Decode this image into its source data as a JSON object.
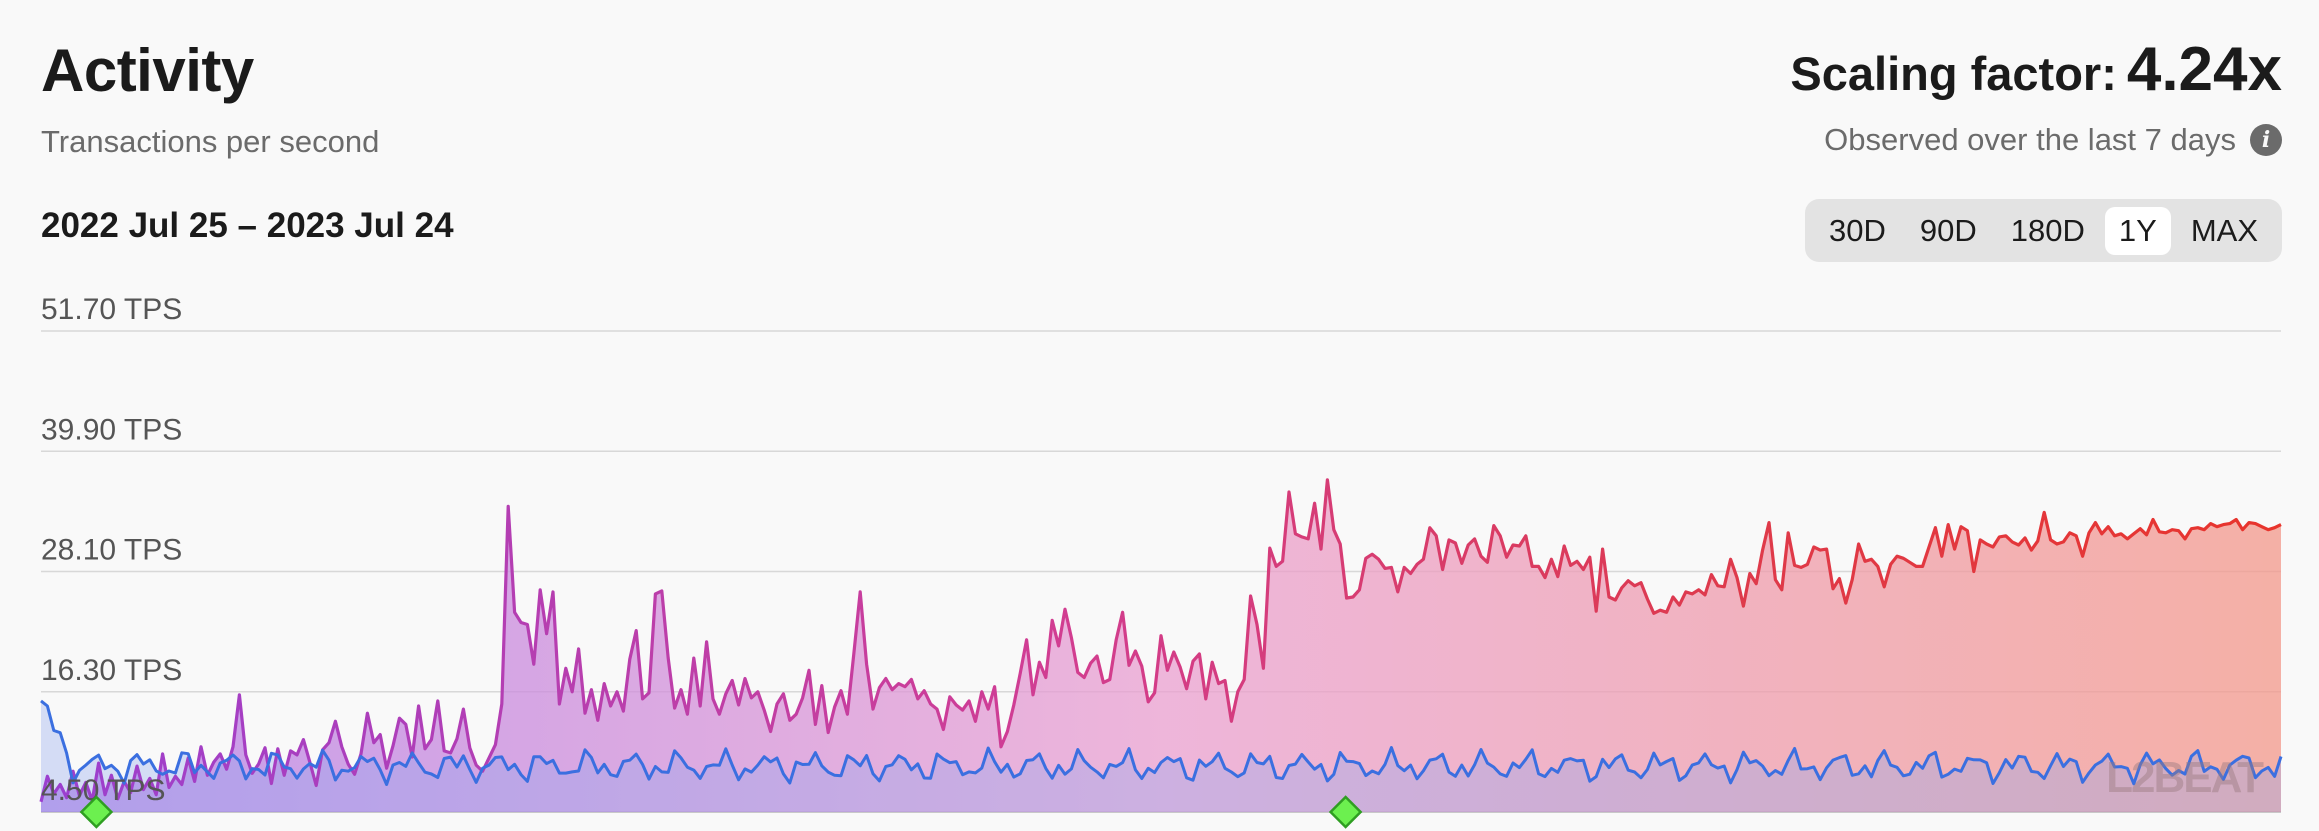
{
  "header": {
    "title": "Activity",
    "subtitle": "Transactions per second",
    "scaling_label": "Scaling factor:",
    "scaling_value": "4.24x",
    "observed": "Observed over the last 7 days",
    "range": "2022 Jul 25 – 2023 Jul 24"
  },
  "timeframes": [
    "30D",
    "90D",
    "180D",
    "1Y",
    "MAX"
  ],
  "active_timeframe": "1Y",
  "watermark": "L2BEAT",
  "icons": {
    "info": "info-icon",
    "milestone": "diamond-icon"
  },
  "colors": {
    "background": "#f9f9f9",
    "scaled_start": "#9b3fcf",
    "scaled_mid": "#d13d92",
    "scaled_end": "#e8342c",
    "ethereum_line": "#3b6fe0",
    "milestone": "#6cf04f"
  },
  "chart_data": {
    "type": "area",
    "x_range": [
      "2022-07-25",
      "2023-07-24"
    ],
    "y_ticks": [
      "4.50 TPS",
      "16.30 TPS",
      "28.10 TPS",
      "39.90 TPS",
      "51.70 TPS"
    ],
    "ylim": [
      4.5,
      51.7
    ],
    "milestones": [
      "2022-08-03",
      "2023-02-22"
    ],
    "series": [
      {
        "points_per_month": 30,
        "values": [
          5.5,
          8,
          6.3,
          7.2,
          5.9,
          8.5,
          6.1,
          7.4,
          5.6,
          9.3,
          6.2,
          8.1,
          5.8,
          7.5,
          6.4,
          9,
          6.7,
          7.8,
          6.2,
          10.2,
          6.9,
          8,
          7.2,
          9.8,
          7.5,
          10.9,
          8.1,
          9.4,
          10.2,
          8.7,
          10.9,
          16,
          10.1,
          8.3,
          9.2,
          10.8,
          7.3,
          10.7,
          8.1,
          10.5,
          10.1,
          11.6,
          9.4,
          7.1,
          10.6,
          11.3,
          13.4,
          10.9,
          9.2,
          8.2,
          10.2,
          14.2,
          11.3,
          12.1,
          8.8,
          11,
          13.7,
          13.1,
          9.9,
          14.9,
          10.7,
          11.6,
          15.4,
          10.5,
          10.3,
          11.7,
          14.6,
          10.8,
          9.1,
          8.5,
          9.8,
          11.1,
          15.1,
          34.5,
          24.1,
          23.1,
          22.9,
          19,
          26.3,
          22,
          26.1,
          15.1,
          18.6,
          16.3,
          20.5,
          14.2,
          16.5,
          13.5,
          17.1,
          14.9,
          16.3,
          14.4,
          19.5,
          22.3,
          15.6,
          16.2,
          25.9,
          26.2,
          19.6,
          14.7,
          16.5,
          14.1,
          19.6,
          14.9,
          21.2,
          15.6,
          14.1,
          16.1,
          17.4,
          15,
          17.6,
          15.7,
          16.3,
          14.5,
          12.4,
          15.1,
          16.1,
          13.5,
          14.1,
          15.7,
          18.4,
          13.1,
          16.9,
          12.3,
          14.8,
          16.4,
          14.1,
          20,
          26.1,
          19,
          14.6,
          16.7,
          17.6,
          16.5,
          17.1,
          16.8,
          17.5,
          15.6,
          16.4,
          15.1,
          14.6,
          12.6,
          15.8,
          15,
          14.5,
          15.4,
          13.4,
          16.3,
          14.6,
          16.8,
          10.9,
          12.4,
          15,
          18.1,
          21.4,
          16,
          19.2,
          17.7,
          23.3,
          20.8,
          24.4,
          21.6,
          18.2,
          17.7,
          19.1,
          19.8,
          17.2,
          17.5,
          21.4,
          24.1,
          18.9,
          20.3,
          18.8,
          15.3,
          16.2,
          21.8,
          18.4,
          20.2,
          18.7,
          16.6,
          19.3,
          20,
          15.6,
          19.2,
          17.1,
          17.4,
          13.4,
          16.3,
          17.5,
          25.7,
          22.9,
          18.6,
          30.4,
          28.6,
          29.1,
          35.9,
          31.8,
          31.5,
          31.3,
          34.8,
          30.3,
          37.1,
          32.2,
          30.8,
          25.5,
          25.6,
          26.3,
          29.4,
          29.8,
          29.3,
          28.4,
          28.5,
          26.1,
          28.5,
          27.9,
          28.8,
          29.3,
          32.4,
          31.6,
          28.3,
          31.2,
          30.9,
          28.9,
          30.7,
          31.3,
          29.6,
          29,
          32.6,
          31.6,
          29.5,
          30.7,
          30.6,
          31.6,
          28.6,
          28.6,
          27.5,
          29.3,
          27.6,
          30.6,
          28.7,
          29.1,
          28.3,
          29.5,
          24.2,
          30.3,
          25.6,
          25.3,
          26.5,
          27.2,
          26.7,
          27,
          25.4,
          24,
          24.3,
          24.1,
          25.6,
          24.8,
          26.1,
          25.9,
          26.3,
          25.8,
          27.8,
          26.7,
          26.6,
          29.3,
          27.5,
          24.7,
          27.9,
          26.9,
          30.2,
          32.9,
          27.3,
          26.3,
          31.9,
          28.7,
          28.5,
          28.8,
          30.5,
          30.2,
          30.3,
          26.4,
          27.4,
          25,
          27.3,
          30.8,
          29.1,
          29.3,
          28.6,
          26.6,
          28.8,
          29.6,
          29.4,
          29,
          28.6,
          28.6,
          30.5,
          32.4,
          29.6,
          32.7,
          30.3,
          32.5,
          32.1,
          28.1,
          31.2,
          30.8,
          30.5,
          31.5,
          31.6,
          31,
          30.7,
          31.4,
          30.2,
          31.1,
          33.9,
          31.2,
          30.8,
          31,
          31.9,
          31.6,
          29.6,
          31.9,
          32.9,
          31.8,
          32.5,
          31.6,
          31.8,
          31.3,
          31.8,
          32.3,
          31.7,
          33.2,
          32,
          31.9,
          32.2,
          32.1,
          31.3,
          32.3,
          32.4,
          32.2,
          32.8,
          32.5,
          32.7,
          32.8,
          33.2,
          32.2,
          32.9,
          32.8,
          32.5,
          32.2,
          32.4,
          32.7
        ]
      }
    ]
  }
}
